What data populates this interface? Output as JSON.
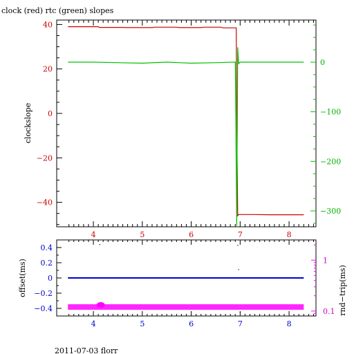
{
  "title": "clock (red) rtc (green) slopes",
  "footer": "2011-07-03 florr",
  "colors": {
    "clock": "#cc0000",
    "rtc": "#00c000",
    "offset": "#0000cc",
    "rndtrip": "#ff00ff"
  },
  "chart_data": [
    {
      "type": "line",
      "title": "clock (red) rtc (green) slopes",
      "ylabel": "clockslope",
      "xlim": [
        3.25,
        8.55
      ],
      "ylim": [
        -51,
        42
      ],
      "x_ticks": [
        "4",
        "5",
        "6",
        "7",
        "8"
      ],
      "y_ticks": [
        "40",
        "20",
        "0",
        "−20",
        "−40"
      ],
      "y2lim": [
        -332,
        85
      ],
      "y2_ticks": [
        "0",
        "−100",
        "−200",
        "−300"
      ],
      "series": [
        {
          "name": "clock",
          "axis": "left",
          "x": [
            3.48,
            4.1,
            4.12,
            4.6,
            4.65,
            5.2,
            5.25,
            5.7,
            5.75,
            6.2,
            6.25,
            6.6,
            6.65,
            6.92,
            6.93,
            6.95,
            6.97,
            7.3,
            7.6,
            8.3
          ],
          "y": [
            39,
            39,
            38.7,
            38.7,
            38.6,
            38.6,
            38.8,
            38.8,
            38.6,
            38.6,
            38.8,
            38.8,
            38.5,
            38.5,
            0,
            -46,
            -45.5,
            -45.5,
            -45.6,
            -45.6
          ]
        },
        {
          "name": "rtc",
          "axis": "right",
          "x": [
            3.48,
            4.0,
            4.5,
            5.0,
            5.5,
            6.0,
            6.5,
            6.9,
            6.93,
            6.95,
            6.97,
            7.0,
            7.5,
            8.0,
            8.3
          ],
          "y": [
            0,
            0,
            -1,
            -2,
            0,
            -2,
            -1,
            0,
            -330,
            30,
            -3,
            0,
            0,
            0,
            0
          ]
        }
      ]
    },
    {
      "type": "scatter",
      "ylabel": "offset(ms)",
      "y2label": "rnd−trip(ms)",
      "xlim": [
        3.25,
        8.55
      ],
      "ylim": [
        -0.5,
        0.5
      ],
      "x_ticks": [
        "4",
        "5",
        "6",
        "7",
        "8"
      ],
      "y_ticks": [
        "0.4",
        "0.2",
        "0",
        "−0.2",
        "−0.4"
      ],
      "y2_scale": "log",
      "y2lim": [
        0.08,
        2.5
      ],
      "y2_ticks": [
        "1",
        "0.1"
      ],
      "series": [
        {
          "name": "offset",
          "axis": "left",
          "x": [
            3.48,
            8.3
          ],
          "y": [
            0.0,
            0.0
          ]
        },
        {
          "name": "rnd-trip",
          "axis": "right",
          "x": [
            3.48,
            8.3
          ],
          "y": [
            0.12,
            0.12
          ]
        }
      ],
      "outliers": {
        "x": [
          4.13,
          6.95,
          6.97,
          7.0
        ],
        "y": [
          0.44,
          0.43,
          0.11,
          -0.45
        ]
      }
    }
  ]
}
